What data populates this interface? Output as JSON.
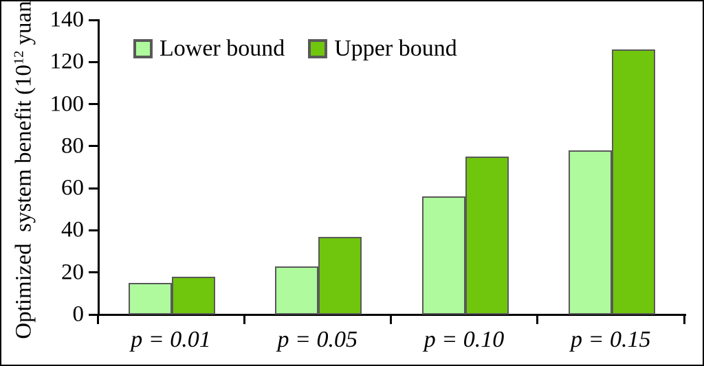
{
  "figure": {
    "background": "#ffffff",
    "frame_color": "#000000"
  },
  "y_axis": {
    "label_prefix": "Optimized  system benefit (10",
    "label_superscript": "12",
    "label_suffix": " yuan)",
    "tick_labels": [
      "0",
      "20",
      "40",
      "60",
      "80",
      "100",
      "120",
      "140"
    ]
  },
  "chart_data": {
    "type": "bar",
    "title": "",
    "categories": [
      "p = 0.01",
      "p = 0.05",
      "p = 0.10",
      "p = 0.15"
    ],
    "series": [
      {
        "name": "Lower bound",
        "color": "#AEFA9D",
        "values": [
          15,
          23,
          56,
          78
        ]
      },
      {
        "name": "Upper bound",
        "color": "#6FC60D",
        "values": [
          18,
          37,
          75,
          126
        ]
      }
    ],
    "xlabel": "",
    "ylabel": "Optimized system benefit (10^12 yuan)",
    "ylim": [
      0,
      140
    ],
    "ytick_step": 20,
    "bar_outline_color": "#595959",
    "legend_position": "top-left-inside",
    "grid": false
  }
}
